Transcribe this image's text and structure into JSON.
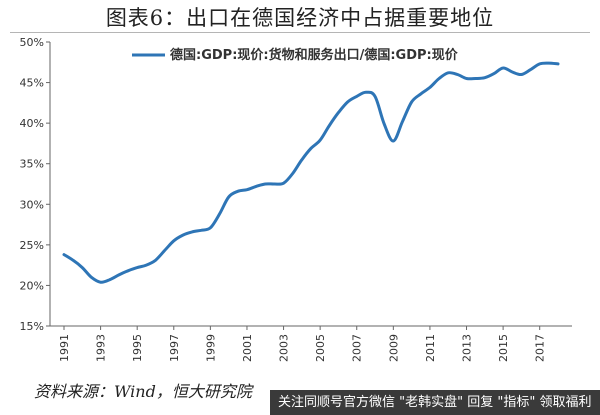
{
  "title": "图表6：出口在德国经济中占据重要地位",
  "source": "资料来源：Wind，恒大研究院",
  "footer_banner": "关注同顺号官方微信 \"老韩实盘\" 回复 \"指标\" 领取福利",
  "colors": {
    "series": "#2e75b6",
    "axis": "#666666",
    "text": "#333333"
  },
  "chart_data": {
    "type": "line",
    "title": "图表6：出口在德国经济中占据重要地位",
    "xlabel": "",
    "ylabel": "",
    "ylim": [
      15,
      50
    ],
    "yticks": [
      15,
      20,
      25,
      30,
      35,
      40,
      45,
      50
    ],
    "ytick_labels": [
      "15%",
      "20%",
      "25%",
      "30%",
      "35%",
      "40%",
      "45%",
      "50%"
    ],
    "xlim": [
      1991,
      2018
    ],
    "xticks": [
      1991,
      1993,
      1995,
      1997,
      1999,
      2001,
      2003,
      2005,
      2007,
      2009,
      2011,
      2013,
      2015,
      2017
    ],
    "xtick_labels": [
      "1991",
      "1993",
      "1995",
      "1997",
      "1999",
      "2001",
      "2003",
      "2005",
      "2007",
      "2009",
      "2011",
      "2013",
      "2015",
      "2017"
    ],
    "grid": false,
    "legend_position": "top",
    "series": [
      {
        "name": "德国:GDP:现价:货物和服务出口/德国:GDP:现价",
        "x": [
          1991,
          1991.5,
          1992,
          1992.5,
          1993,
          1993.5,
          1994,
          1994.5,
          1995,
          1995.5,
          1996,
          1996.5,
          1997,
          1997.5,
          1998,
          1998.5,
          1999,
          1999.5,
          2000,
          2000.5,
          2001,
          2001.5,
          2002,
          2002.5,
          2003,
          2003.5,
          2004,
          2004.5,
          2005,
          2005.5,
          2006,
          2006.5,
          2007,
          2007.5,
          2008,
          2008.5,
          2009,
          2009.5,
          2010,
          2010.5,
          2011,
          2011.5,
          2012,
          2012.5,
          2013,
          2013.5,
          2014,
          2014.5,
          2015,
          2015.5,
          2016,
          2016.5,
          2017,
          2017.5,
          2018
        ],
        "values": [
          23.8,
          23.1,
          22.2,
          21.0,
          20.4,
          20.7,
          21.3,
          21.8,
          22.2,
          22.5,
          23.1,
          24.3,
          25.5,
          26.2,
          26.6,
          26.8,
          27.1,
          28.8,
          30.9,
          31.6,
          31.8,
          32.2,
          32.5,
          32.5,
          32.6,
          33.8,
          35.5,
          36.9,
          37.9,
          39.7,
          41.3,
          42.6,
          43.3,
          43.8,
          43.3,
          39.9,
          37.8,
          40.2,
          42.6,
          43.6,
          44.4,
          45.5,
          46.2,
          46.0,
          45.5,
          45.5,
          45.6,
          46.1,
          46.8,
          46.3,
          46.0,
          46.6,
          47.3,
          47.4,
          47.3
        ]
      }
    ]
  }
}
